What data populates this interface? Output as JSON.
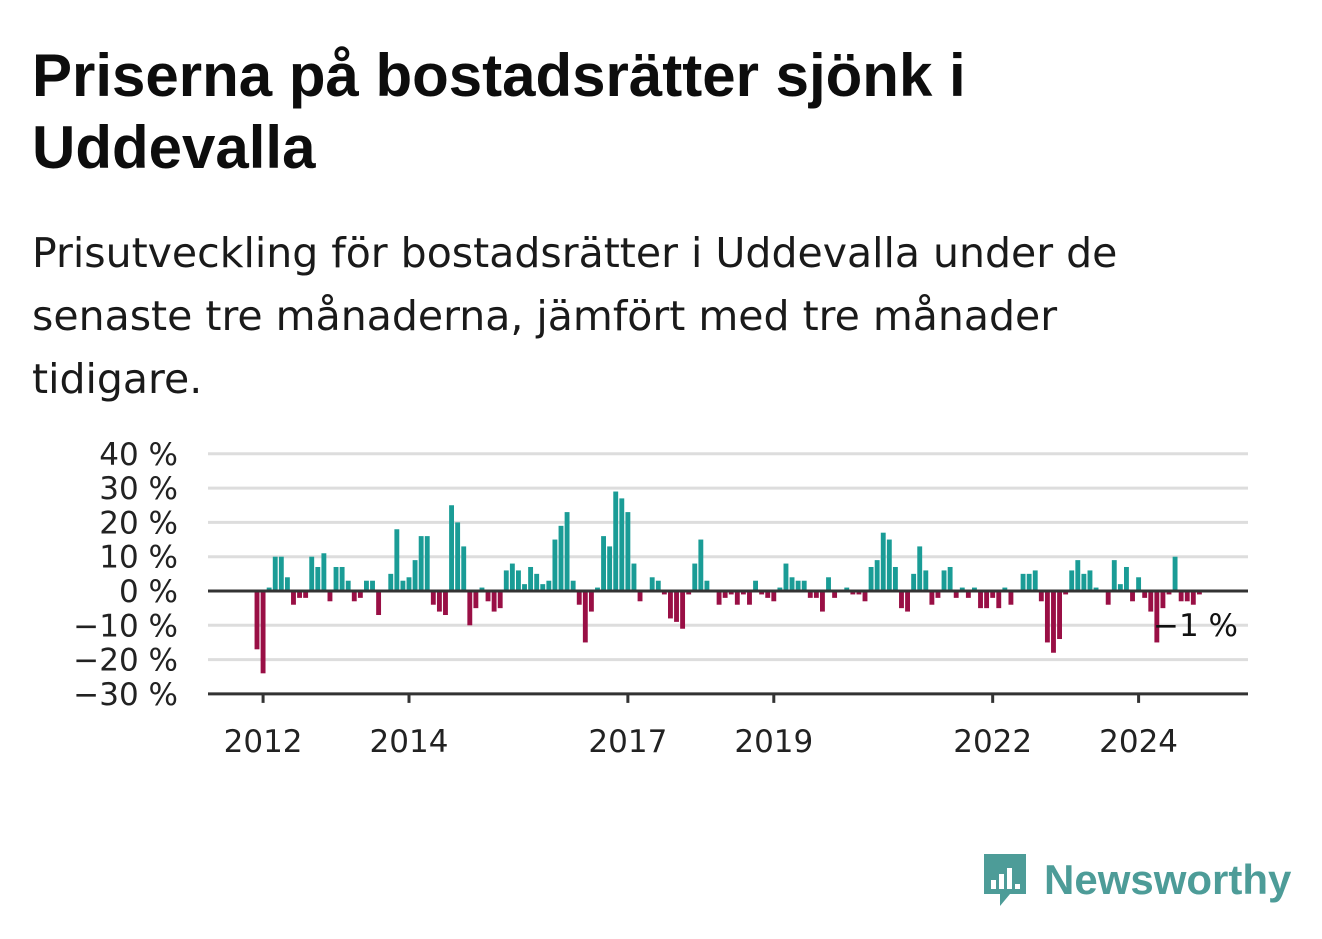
{
  "title": "Priserna på bostadsrätter sjönk i Uddevalla",
  "subtitle": "Prisutveckling för bostadsrätter i Uddevalla under de senaste tre månaderna, jämfört med tre månader tidigare.",
  "brand": {
    "name": "Newsworthy",
    "icon": "newsworthy-logo-icon",
    "color": "#4d9c98"
  },
  "colors": {
    "positive": "#1a9c96",
    "negative": "#990f45",
    "grid": "#dddddd",
    "axis": "#333333"
  },
  "chart_data": {
    "type": "bar",
    "ylim": [
      -30,
      40
    ],
    "yticks": [
      40,
      30,
      20,
      10,
      0,
      -10,
      -20,
      -30
    ],
    "ytick_labels": [
      "40 %",
      "30 %",
      "20 %",
      "10 %",
      "0 %",
      "−10 %",
      "−20 %",
      "−30 %"
    ],
    "xticks": [
      2012,
      2014,
      2017,
      2019,
      2022,
      2024
    ],
    "x_start": "2011-12",
    "values": [
      -17,
      -24,
      1,
      10,
      10,
      4,
      -4,
      -2,
      -2,
      10,
      7,
      11,
      -3,
      7,
      7,
      3,
      -3,
      -2,
      3,
      3,
      -7,
      0,
      5,
      18,
      3,
      4,
      9,
      16,
      16,
      -4,
      -6,
      -7,
      25,
      20,
      13,
      -10,
      -5,
      1,
      -3,
      -6,
      -5,
      6,
      8,
      6,
      2,
      7,
      5,
      2,
      3,
      15,
      19,
      23,
      3,
      -4,
      -15,
      -6,
      1,
      16,
      13,
      29,
      27,
      23,
      8,
      -3,
      0,
      4,
      3,
      -1,
      -8,
      -9,
      -11,
      -1,
      8,
      15,
      3,
      0,
      -4,
      -2,
      -1,
      -4,
      -1,
      -4,
      3,
      -1,
      -2,
      -3,
      1,
      8,
      4,
      3,
      3,
      -2,
      -2,
      -6,
      4,
      -2,
      0,
      1,
      -1,
      -1,
      -3,
      7,
      9,
      17,
      15,
      7,
      -5,
      -6,
      5,
      13,
      6,
      -4,
      -2,
      6,
      7,
      -2,
      1,
      -2,
      1,
      -5,
      -5,
      -2,
      -5,
      1,
      -4,
      0,
      5,
      5,
      6,
      -3,
      -15,
      -18,
      -14,
      -1,
      6,
      9,
      5,
      6,
      1,
      0,
      -4,
      9,
      2,
      7,
      -3,
      4,
      -2,
      -6,
      -15,
      -5,
      -1,
      10,
      -3,
      -3,
      -4,
      -1
    ],
    "end_label": "−1 %"
  }
}
